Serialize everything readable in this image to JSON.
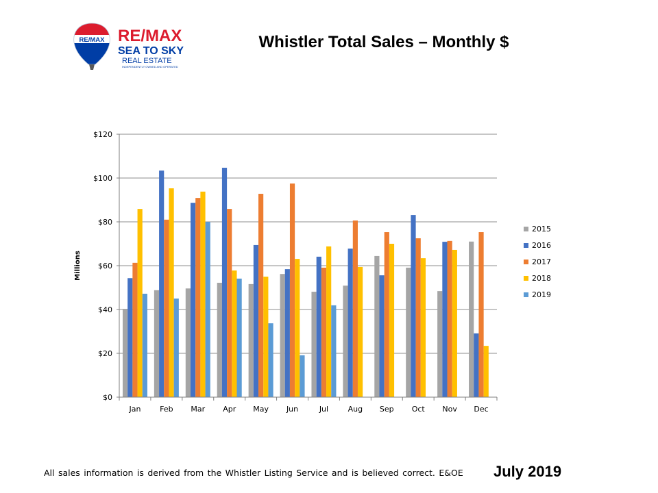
{
  "logo": {
    "brand": "RE/MAX",
    "balloon_text": "RE/MAX",
    "line1": "SEA TO SKY",
    "line2": "REAL ESTATE",
    "tagline": "INDEPENDENTLY OWNED AND OPERATED"
  },
  "title": "Whistler Total Sales – Monthly $",
  "footer": {
    "note": "All sales information is derived from the Whistler Listing Service and is believed correct. E&OE",
    "date": "July 2019"
  },
  "colors": {
    "brand_red": "#dc1c2e",
    "brand_blue": "#003da5"
  },
  "chart_data": {
    "type": "bar",
    "title": "",
    "xlabel": "",
    "ylabel": "Millions",
    "ylim": [
      0,
      120
    ],
    "yticks": [
      0,
      20,
      40,
      60,
      80,
      100,
      120
    ],
    "ytick_labels": [
      "$0",
      "$20",
      "$40",
      "$60",
      "$80",
      "$100",
      "$120"
    ],
    "grid": true,
    "legend_position": "right",
    "categories": [
      "Jan",
      "Feb",
      "Mar",
      "Apr",
      "May",
      "Jun",
      "Jul",
      "Aug",
      "Sep",
      "Oct",
      "Nov",
      "Dec"
    ],
    "series": [
      {
        "name": "2015",
        "color": "#a5a5a5",
        "values": [
          40.3,
          48.8,
          49.6,
          52.2,
          51.6,
          56.2,
          48.1,
          50.9,
          64.4,
          59.1,
          48.4,
          71.0
        ]
      },
      {
        "name": "2016",
        "color": "#4472c4",
        "values": [
          54.3,
          103.4,
          88.7,
          104.7,
          69.4,
          58.4,
          64.1,
          67.8,
          55.6,
          83.1,
          70.9,
          29.1
        ]
      },
      {
        "name": "2017",
        "color": "#ed7d31",
        "values": [
          61.3,
          81.0,
          90.9,
          85.9,
          92.8,
          97.5,
          59.1,
          80.6,
          75.3,
          72.5,
          71.3,
          75.3
        ]
      },
      {
        "name": "2018",
        "color": "#ffc000",
        "values": [
          85.9,
          95.3,
          93.8,
          57.8,
          55.0,
          63.1,
          68.8,
          59.4,
          70.0,
          63.4,
          67.2,
          23.4
        ]
      },
      {
        "name": "2019",
        "color": "#5b9bd5",
        "values": [
          47.2,
          45.0,
          80.0,
          54.1,
          33.7,
          19.1,
          41.9,
          null,
          null,
          null,
          null,
          null
        ]
      }
    ]
  }
}
